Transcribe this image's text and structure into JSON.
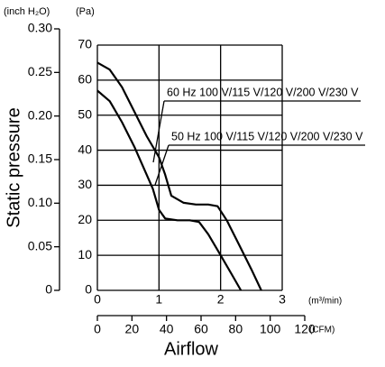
{
  "chart_data": {
    "type": "line",
    "ylabel": "Static pressure",
    "xlabel": "Airflow",
    "y_unit": "(Pa)",
    "y2_unit": "(inch H₂O)",
    "x_unit": "(m³/min)",
    "x2_unit": "(CFM)",
    "xlim": [
      0,
      3
    ],
    "xticks": [
      0,
      1,
      2,
      3
    ],
    "x2lim": [
      0,
      120
    ],
    "x2ticks": [
      0,
      20,
      40,
      60,
      80,
      100,
      120
    ],
    "ylim": [
      0,
      70
    ],
    "yticks": [
      0,
      10,
      20,
      30,
      40,
      50,
      60,
      70
    ],
    "y2lim": [
      0,
      0.3
    ],
    "y2ticks": [
      0,
      0.05,
      {
        "value": 0.1,
        "label": "0.10"
      },
      0.15,
      {
        "value": 0.2,
        "label": "0.20"
      },
      0.25,
      {
        "value": 0.3,
        "label": "0.30"
      }
    ],
    "grid": true,
    "series": [
      {
        "name": "60 Hz 100 V/115 V/120 V/200 V/230 V",
        "color": "#000000",
        "x": [
          0,
          0.2,
          0.4,
          0.6,
          0.8,
          1.0,
          1.1,
          1.2,
          1.4,
          1.6,
          1.8,
          1.95,
          2.1,
          2.3,
          2.5,
          2.66
        ],
        "values": [
          65,
          63,
          58,
          51,
          44,
          38,
          33,
          27,
          25,
          24.5,
          24.5,
          24,
          20,
          13,
          6,
          0
        ]
      },
      {
        "name": "50 Hz 100 V/115 V/120 V/200 V/230 V",
        "color": "#000000",
        "x": [
          0,
          0.2,
          0.4,
          0.6,
          0.8,
          0.9,
          1.0,
          1.1,
          1.3,
          1.5,
          1.65,
          1.8,
          2.0,
          2.2,
          2.33
        ],
        "values": [
          57,
          54,
          48,
          41,
          33,
          29,
          23,
          20.5,
          20,
          20,
          19.5,
          16,
          10,
          4,
          0
        ]
      }
    ]
  }
}
